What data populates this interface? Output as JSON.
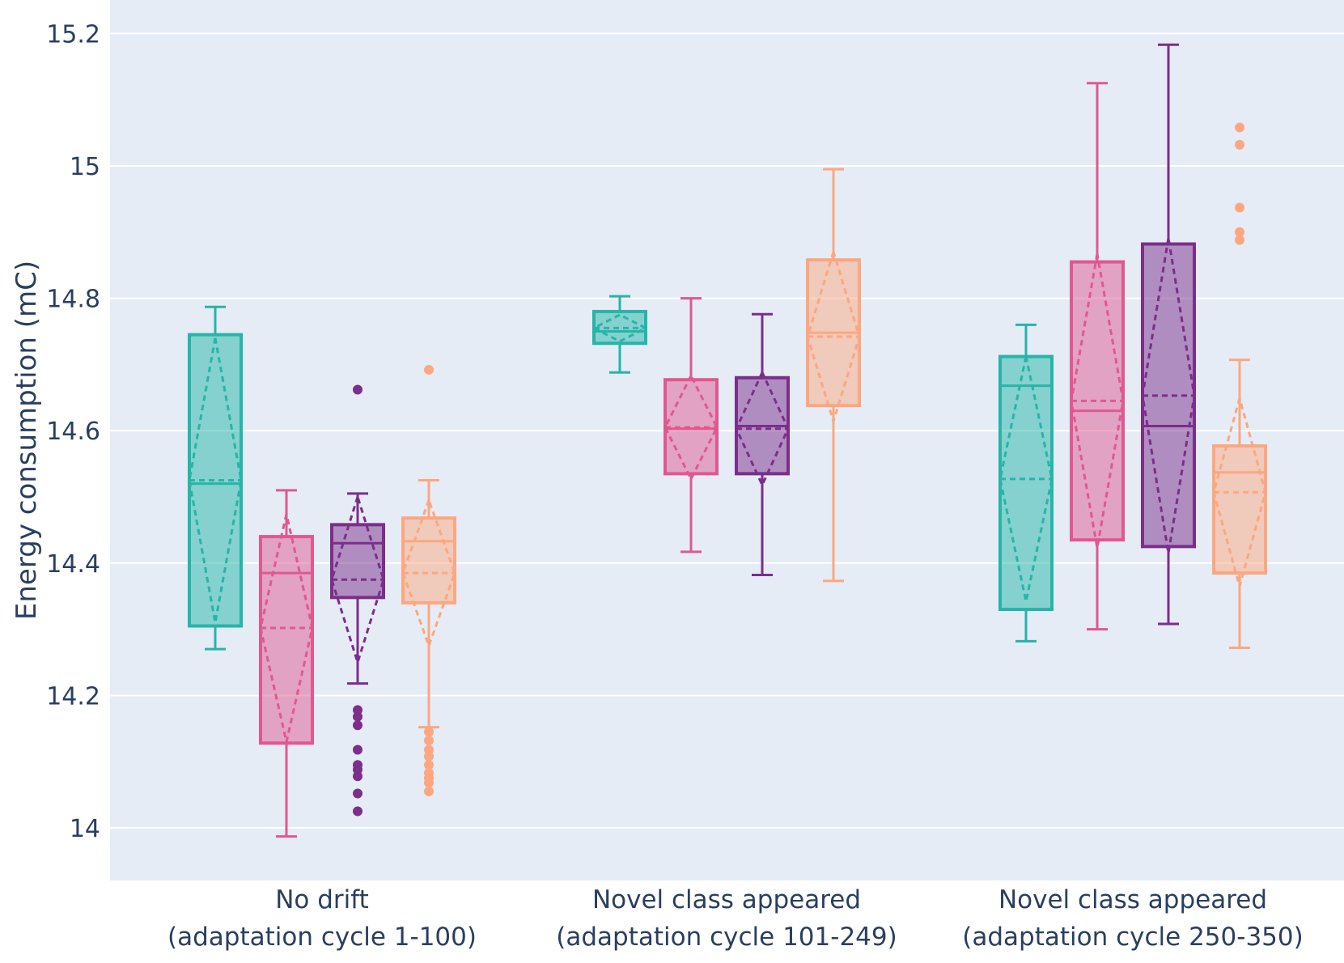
{
  "chart_data": {
    "type": "box",
    "title": "",
    "ylabel": "Energy consumption (mC)",
    "xlabel": "",
    "ylim": [
      13.92,
      15.25
    ],
    "yticks": [
      14,
      14.2,
      14.4,
      14.6,
      14.8,
      15,
      15.2
    ],
    "ytick_labels": [
      "14",
      "14.2",
      "14.4",
      "14.6",
      "14.8",
      "15",
      "15.2"
    ],
    "grid": true,
    "legend": "none",
    "categories": [
      [
        "No drift",
        "(adaptation cycle 1-100)"
      ],
      [
        "Novel class appeared",
        "(adaptation cycle 101-249)"
      ],
      [
        "Novel class appeared",
        "(adaptation cycle 250-350)"
      ]
    ],
    "colors": [
      "#26b5a8",
      "#e0588f",
      "#7b2e8a",
      "#fca77f"
    ],
    "series": [
      {
        "color": "#26b5a8",
        "boxes": [
          {
            "whislo": 14.27,
            "q1": 14.305,
            "median": 14.52,
            "q3": 14.745,
            "whishi": 14.787,
            "mean": 14.525,
            "sd": 0.215,
            "outliers": []
          },
          {
            "whislo": 14.688,
            "q1": 14.732,
            "median": 14.75,
            "q3": 14.78,
            "whishi": 14.803,
            "mean": 14.755,
            "sd": 0.02,
            "outliers": []
          },
          {
            "whislo": 14.282,
            "q1": 14.33,
            "median": 14.668,
            "q3": 14.712,
            "whishi": 14.76,
            "mean": 14.527,
            "sd": 0.185,
            "outliers": []
          }
        ]
      },
      {
        "color": "#e0588f",
        "boxes": [
          {
            "whislo": 13.987,
            "q1": 14.128,
            "median": 14.385,
            "q3": 14.44,
            "whishi": 14.51,
            "mean": 14.302,
            "sd": 0.172,
            "outliers": []
          },
          {
            "whislo": 14.417,
            "q1": 14.535,
            "median": 14.603,
            "q3": 14.677,
            "whishi": 14.8,
            "mean": 14.605,
            "sd": 0.078,
            "outliers": []
          },
          {
            "whislo": 14.3,
            "q1": 14.435,
            "median": 14.63,
            "q3": 14.855,
            "whishi": 15.125,
            "mean": 14.645,
            "sd": 0.222,
            "outliers": []
          }
        ]
      },
      {
        "color": "#7b2e8a",
        "boxes": [
          {
            "whislo": 14.218,
            "q1": 14.348,
            "median": 14.43,
            "q3": 14.458,
            "whishi": 14.505,
            "mean": 14.375,
            "sd": 0.125,
            "outliers": [
              14.662,
              14.178,
              14.168,
              14.155,
              14.118,
              14.095,
              14.088,
              14.078,
              14.052,
              14.025
            ]
          },
          {
            "whislo": 14.382,
            "q1": 14.535,
            "median": 14.607,
            "q3": 14.68,
            "whishi": 14.776,
            "mean": 14.603,
            "sd": 0.085,
            "outliers": []
          },
          {
            "whislo": 14.308,
            "q1": 14.425,
            "median": 14.607,
            "q3": 14.882,
            "whishi": 15.183,
            "mean": 14.653,
            "sd": 0.238,
            "outliers": []
          }
        ]
      },
      {
        "color": "#fca77f",
        "boxes": [
          {
            "whislo": 14.152,
            "q1": 14.34,
            "median": 14.433,
            "q3": 14.468,
            "whishi": 14.525,
            "mean": 14.385,
            "sd": 0.11,
            "outliers": [
              14.692,
              14.145,
              14.132,
              14.118,
              14.108,
              14.095,
              14.083,
              14.075,
              14.068,
              14.055
            ]
          },
          {
            "whislo": 14.373,
            "q1": 14.638,
            "median": 14.748,
            "q3": 14.858,
            "whishi": 14.995,
            "mean": 14.742,
            "sd": 0.128,
            "outliers": []
          },
          {
            "whislo": 14.272,
            "q1": 14.385,
            "median": 14.537,
            "q3": 14.577,
            "whishi": 14.707,
            "mean": 14.507,
            "sd": 0.142,
            "outliers": [
              15.058,
              15.032,
              14.937,
              14.9,
              14.888
            ]
          }
        ]
      }
    ]
  }
}
